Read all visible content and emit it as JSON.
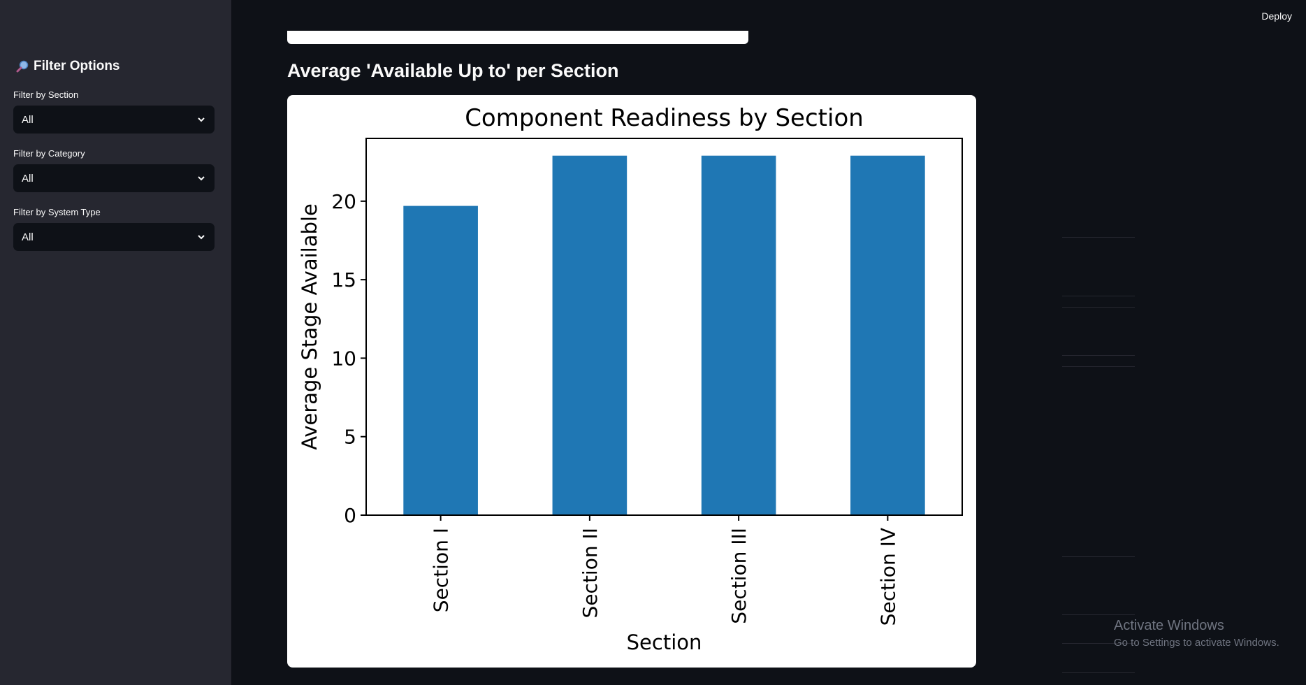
{
  "header": {
    "deploy_label": "Deploy"
  },
  "sidebar": {
    "title": "Filter Options",
    "title_icon": "magnifier-icon",
    "filters": [
      {
        "label": "Filter by Section",
        "value": "All"
      },
      {
        "label": "Filter by Category",
        "value": "All"
      },
      {
        "label": "Filter by System Type",
        "value": "All"
      }
    ]
  },
  "main": {
    "heading": "Average 'Available Up to' per Section"
  },
  "chart_data": {
    "type": "bar",
    "title": "Component Readiness by Section",
    "xlabel": "Section",
    "ylabel": "Average Stage Available",
    "categories": [
      "Section I",
      "Section II",
      "Section III",
      "Section IV"
    ],
    "values": [
      19.7,
      22.9,
      22.9,
      22.9
    ],
    "ylim": [
      0,
      24
    ],
    "yticks": [
      0,
      5,
      10,
      15,
      20
    ],
    "bar_color": "#1f77b4",
    "grid": false,
    "legend": "none"
  },
  "watermark": {
    "line1": "Activate Windows",
    "line2": "Go to Settings to activate Windows."
  },
  "colors": {
    "background": "#0e1117",
    "sidebar": "#262730",
    "accent": "#1f77b4"
  }
}
